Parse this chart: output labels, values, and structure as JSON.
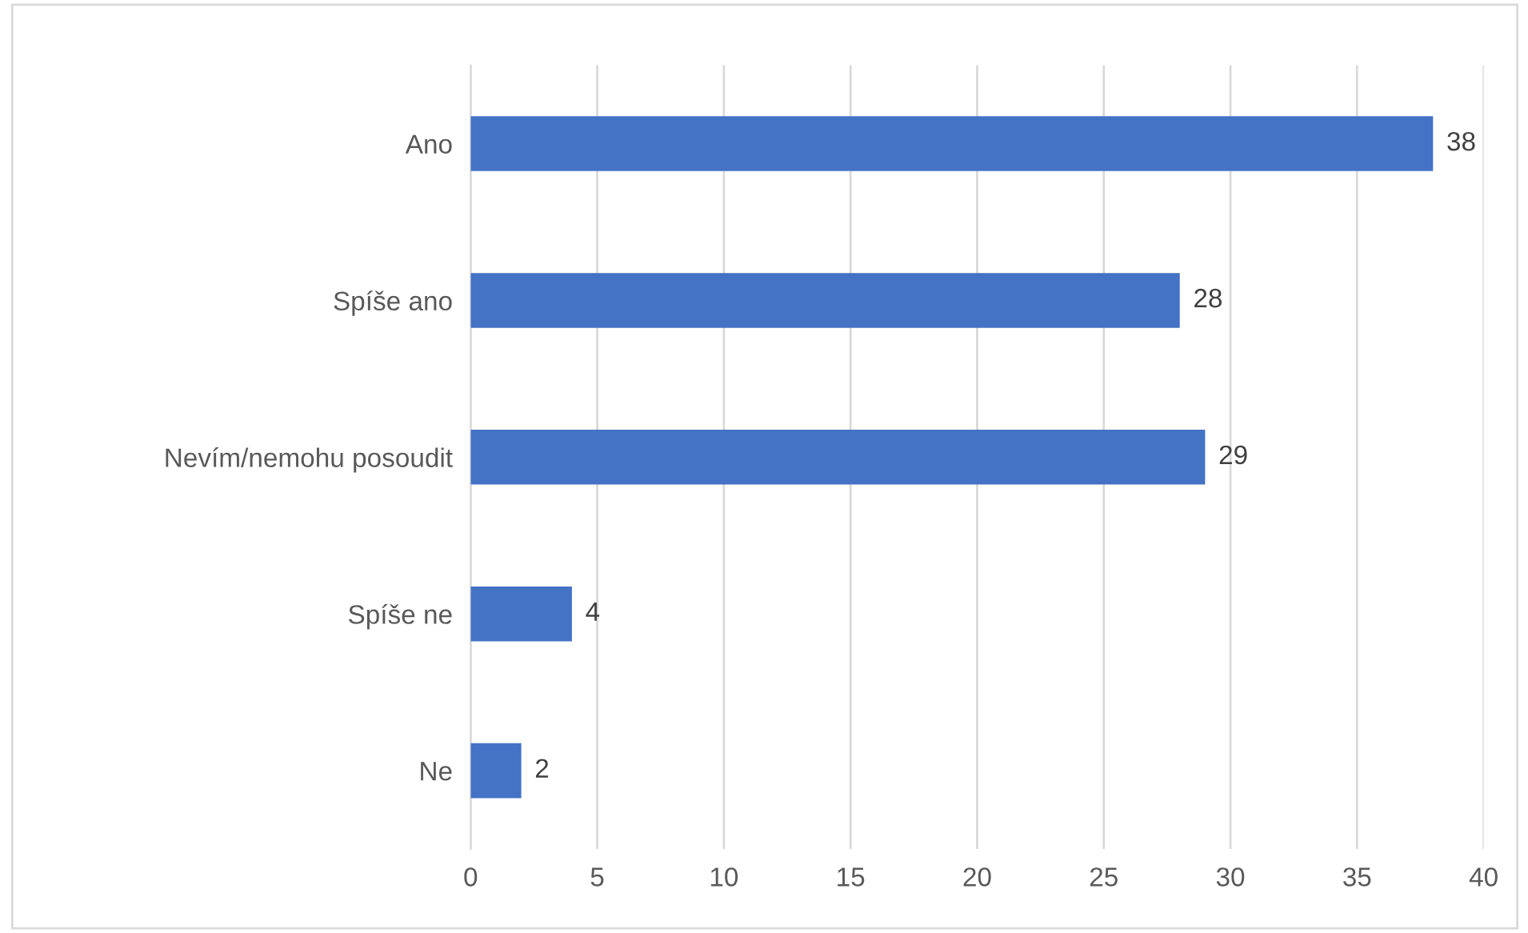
{
  "chart_data": {
    "type": "bar",
    "orientation": "horizontal",
    "categories": [
      "Ano",
      "Spíše ano",
      "Nevím/nemohu posoudit",
      "Spíše ne",
      "Ne"
    ],
    "values": [
      38,
      28,
      29,
      4,
      2
    ],
    "color": "#4472c4",
    "xlim": [
      0,
      40
    ],
    "xticks": [
      0,
      5,
      10,
      15,
      20,
      25,
      30,
      35,
      40
    ],
    "grid": "x",
    "data_labels": true,
    "legend": false
  }
}
